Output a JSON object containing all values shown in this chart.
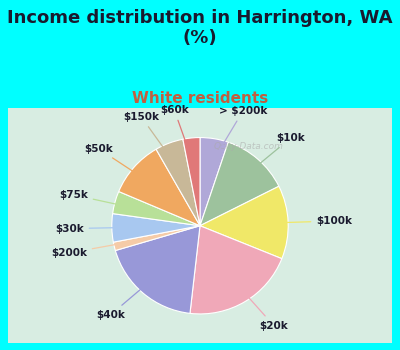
{
  "title": "Income distribution in Harrington, WA\n(%)",
  "subtitle": "White residents",
  "bg_color": "#00FFFF",
  "labels": [
    "> $200k",
    "$10k",
    "$100k",
    "$20k",
    "$40k",
    "$200k",
    "$30k",
    "$75k",
    "$50k",
    "$150k",
    "$60k"
  ],
  "values": [
    5,
    12,
    13,
    20,
    18,
    1.5,
    5,
    4,
    10,
    5,
    3
  ],
  "colors": [
    "#b0a8d8",
    "#9dc29d",
    "#f0e868",
    "#f0a8b8",
    "#9898d8",
    "#f5cba7",
    "#a8c8f0",
    "#b8e098",
    "#f0a860",
    "#c8b898",
    "#e07878"
  ],
  "watermark": "Qcity-Data.com",
  "title_fontsize": 13,
  "subtitle_fontsize": 11,
  "subtitle_color": "#c06040",
  "label_fontsize": 7.5
}
